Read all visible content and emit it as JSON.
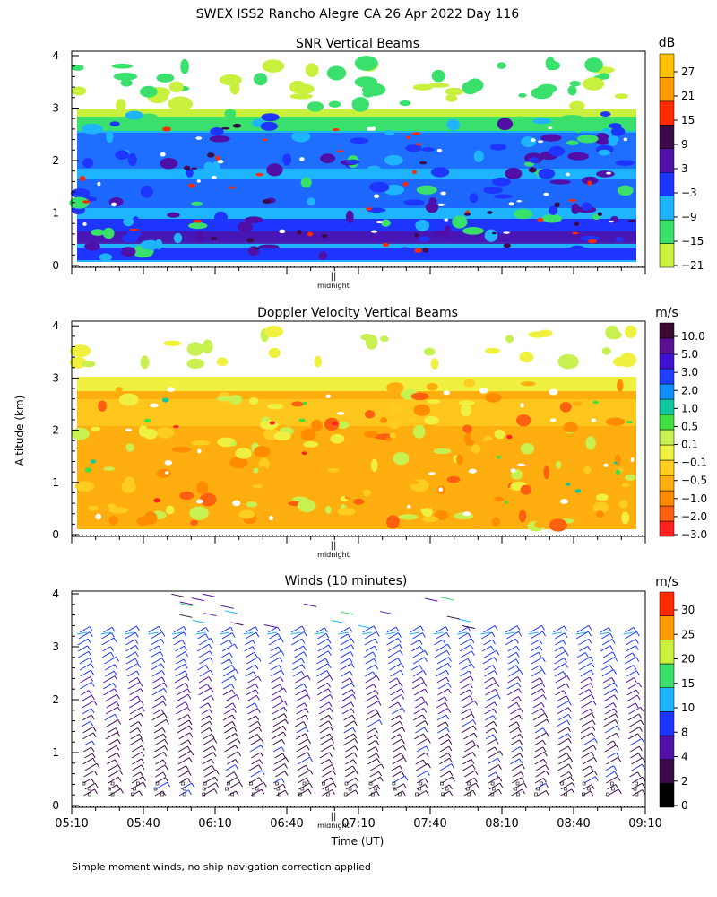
{
  "header": {
    "title": "SWEX ISS2 Rancho Alegre CA  26 Apr 2022 Day 116"
  },
  "footer": {
    "note": "Simple moment winds, no ship navigation correction applied"
  },
  "colors": {
    "snr": [
      "#c8f03c",
      "#39e06b",
      "#1fb4ff",
      "#1d35ff",
      "#5010a8",
      "#3c0a48",
      "#ff2a00",
      "#ff9a00",
      "#ffc000"
    ],
    "vel": [
      "#ff2020",
      "#ff6010",
      "#ff8c00",
      "#ffae10",
      "#ffcc20",
      "#f0f040",
      "#c8f050",
      "#40e040",
      "#10c8a0",
      "#1090ff",
      "#2040ff",
      "#4010d0",
      "#5a1090",
      "#3a0830"
    ],
    "wind": [
      "#000000",
      "#3c0a48",
      "#5010a8",
      "#1d35ff",
      "#1fb4ff",
      "#39e06b",
      "#c8f03c",
      "#ff9a00",
      "#ff2a00"
    ]
  },
  "chart_data": [
    {
      "type": "heatmap",
      "title": "SNR Vertical Beams",
      "colorbar_label": "dB",
      "colorbar_ticks": [
        "27",
        "21",
        "15",
        "9",
        "3",
        "−3",
        "−9",
        "−15",
        "−21"
      ],
      "ylabel": "",
      "y_ticks": [
        "0",
        "1",
        "2",
        "3",
        "4"
      ],
      "ylim": [
        0,
        4
      ],
      "x_marker": "midnight",
      "x_marker_symbol": "||",
      "x_range": [
        "05:10",
        "09:10"
      ]
    },
    {
      "type": "heatmap",
      "title": "Doppler Velocity Vertical Beams",
      "colorbar_label": "m/s",
      "colorbar_ticks": [
        "10.0",
        "5.0",
        "3.0",
        "2.0",
        "1.0",
        "0.5",
        "0.1",
        "−0.1",
        "−0.5",
        "−1.0",
        "−2.0",
        "−3.0"
      ],
      "ylabel": "Altitude (km)",
      "y_ticks": [
        "0",
        "1",
        "2",
        "3",
        "4"
      ],
      "ylim": [
        0,
        4
      ],
      "x_marker": "midnight",
      "x_marker_symbol": "||",
      "x_range": [
        "05:10",
        "09:10"
      ]
    },
    {
      "type": "scatter",
      "title": "Winds (10 minutes)",
      "colorbar_label": "m/s",
      "colorbar_ticks": [
        "30",
        "25",
        "20",
        "15",
        "10",
        "8",
        "4",
        "2",
        "0"
      ],
      "ylabel": "",
      "y_ticks": [
        "0",
        "1",
        "2",
        "3",
        "4"
      ],
      "ylim": [
        0,
        4
      ],
      "xlabel": "Time (UT)",
      "x_ticks": [
        "05:10",
        "05:40",
        "06:10",
        "06:40",
        "07:10",
        "07:40",
        "08:10",
        "08:40",
        "09:10"
      ],
      "x_marker": "midnight",
      "x_marker_symbol": "||",
      "barb_profiles": 24,
      "x_range": [
        "05:10",
        "09:10"
      ]
    }
  ]
}
